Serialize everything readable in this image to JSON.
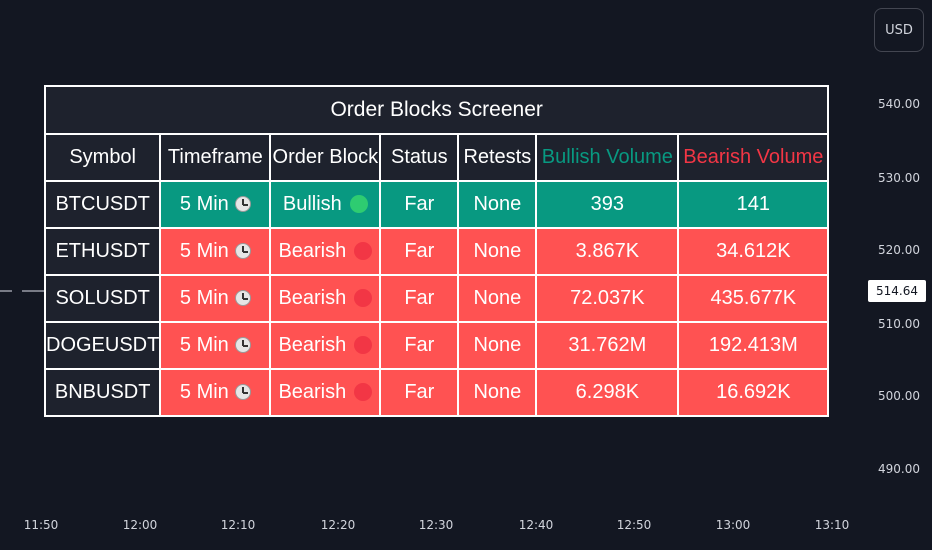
{
  "currency": "USD",
  "price_axis": {
    "ticks": [
      "540.00",
      "530.00",
      "520.00",
      "510.00",
      "500.00",
      "490.00"
    ],
    "current_price": "514.64"
  },
  "time_axis": {
    "ticks": [
      "11:50",
      "12:00",
      "12:10",
      "12:20",
      "12:30",
      "12:40",
      "12:50",
      "13:00",
      "13:10"
    ]
  },
  "screener": {
    "title": "Order Blocks Screener",
    "headers": {
      "symbol": "Symbol",
      "timeframe": "Timeframe",
      "order_block": "Order Block",
      "status": "Status",
      "retests": "Retests",
      "bullish_volume": "Bullish Volume",
      "bearish_volume": "Bearish Volume"
    },
    "rows": [
      {
        "symbol": "BTCUSDT",
        "timeframe": "5 Min",
        "order_block": "Bullish",
        "status": "Far",
        "retests": "None",
        "bullish_volume": "393",
        "bearish_volume": "141"
      },
      {
        "symbol": "ETHUSDT",
        "timeframe": "5 Min",
        "order_block": "Bearish",
        "status": "Far",
        "retests": "None",
        "bullish_volume": "3.867K",
        "bearish_volume": "34.612K"
      },
      {
        "symbol": "SOLUSDT",
        "timeframe": "5 Min",
        "order_block": "Bearish",
        "status": "Far",
        "retests": "None",
        "bullish_volume": "72.037K",
        "bearish_volume": "435.677K"
      },
      {
        "symbol": "DOGEUSDT",
        "timeframe": "5 Min",
        "order_block": "Bearish",
        "status": "Far",
        "retests": "None",
        "bullish_volume": "31.762M",
        "bearish_volume": "192.413M"
      },
      {
        "symbol": "BNBUSDT",
        "timeframe": "5 Min",
        "order_block": "Bearish",
        "status": "Far",
        "retests": "None",
        "bullish_volume": "6.298K",
        "bearish_volume": "16.692K"
      }
    ]
  },
  "colors": {
    "background": "#131722",
    "header_bg": "#1e222d",
    "bullish": "#089981",
    "bearish": "#ff5252",
    "bullish_text": "#089981",
    "bearish_text": "#f23645",
    "bullish_dot": "#2ecc71",
    "bearish_dot": "#f23645"
  },
  "icons": {
    "timeframe": "clock-icon",
    "order_block_bullish": "green-circle-icon",
    "order_block_bearish": "red-circle-icon"
  }
}
